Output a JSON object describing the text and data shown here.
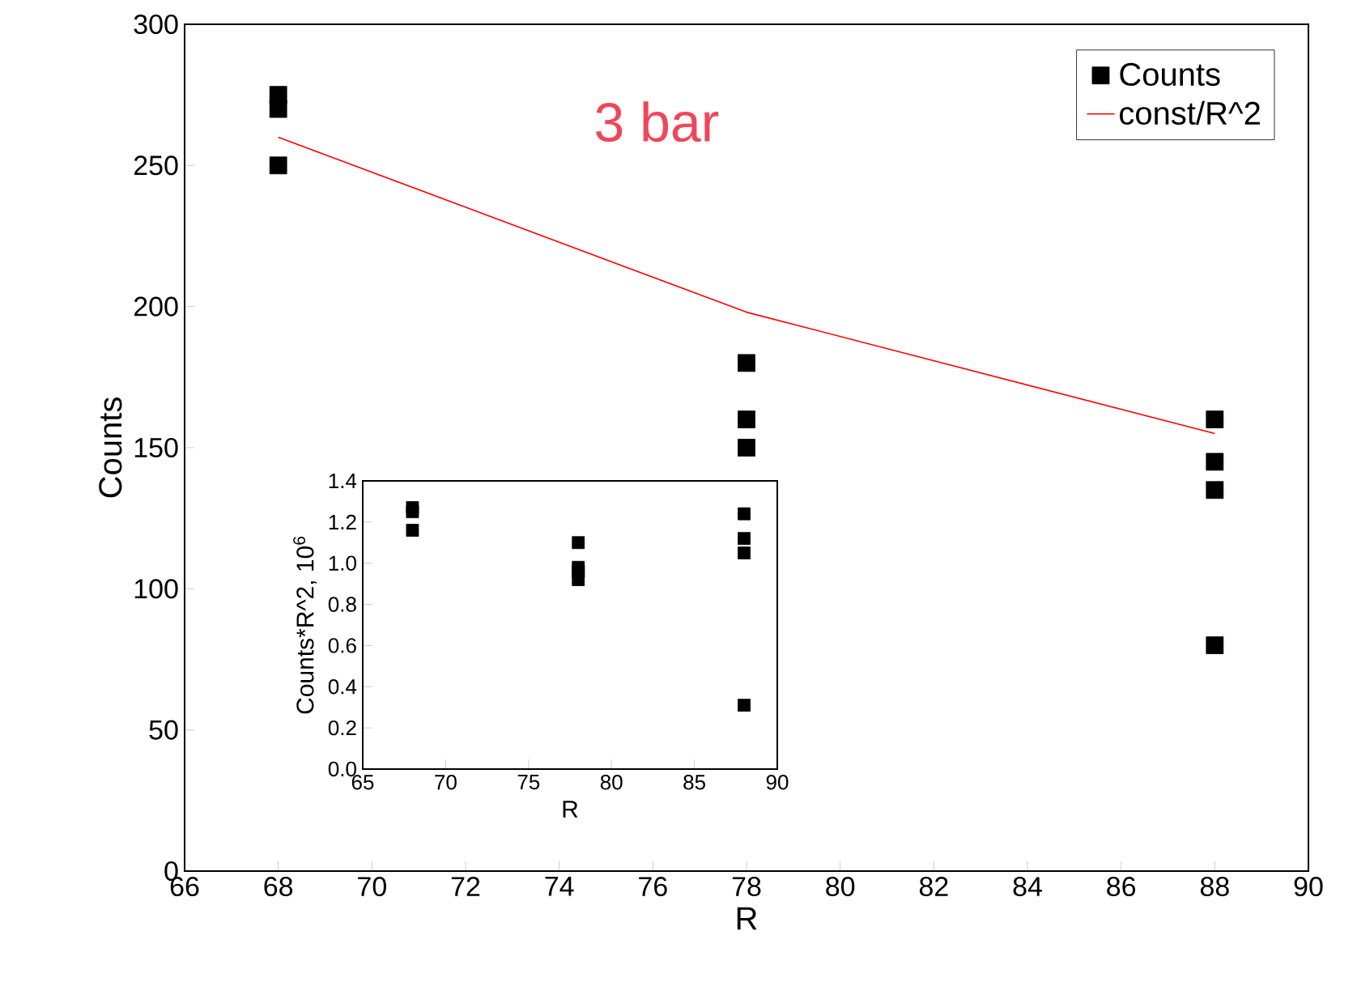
{
  "chart_data": [
    {
      "type": "scatter",
      "xlabel": "R",
      "ylabel": "Counts",
      "annotations": [
        "3 bar"
      ],
      "xlim": [
        66,
        90
      ],
      "ylim": [
        0,
        300
      ],
      "xticks": [
        66,
        68,
        70,
        72,
        74,
        76,
        78,
        80,
        82,
        84,
        86,
        88,
        90
      ],
      "yticks": [
        0,
        50,
        100,
        150,
        200,
        250,
        300
      ],
      "legend": "top right",
      "grid": false,
      "series": [
        {
          "name": "Counts",
          "type": "scatter",
          "color": "#000000",
          "marker": "square",
          "x": [
            68,
            68,
            68,
            78,
            78,
            78,
            88,
            88,
            88,
            88
          ],
          "values": [
            275,
            270,
            250,
            180,
            160,
            150,
            160,
            145,
            135,
            80
          ]
        },
        {
          "name": "const/R^2",
          "type": "line",
          "color": "#ff0000",
          "marker": "none",
          "line_style": "solid",
          "x": [
            68,
            78,
            88
          ],
          "values": [
            260,
            198,
            155
          ]
        }
      ]
    },
    {
      "type": "scatter",
      "xlabel": "R",
      "ylabel": "Counts*R^2, 10$^{6}$",
      "xlim": [
        65,
        90
      ],
      "ylim": [
        0,
        1.4
      ],
      "xticks": [
        65,
        70,
        75,
        80,
        85,
        90
      ],
      "yticks": [
        {
          "value": 0,
          "label": "0.0"
        },
        {
          "value": 0.2,
          "label": "0.2"
        },
        {
          "value": 0.4,
          "label": "0.4"
        },
        {
          "value": 0.6,
          "label": "0.6"
        },
        {
          "value": 0.8,
          "label": "0.8"
        },
        {
          "value": 1.0,
          "label": "1.0"
        },
        {
          "value": 1.2,
          "label": "1.2"
        },
        {
          "value": 1.4,
          "label": "1.4"
        }
      ],
      "legend": false,
      "grid": false,
      "marker": "square",
      "color": "#000000",
      "x": [
        68,
        68,
        68,
        78,
        78,
        78,
        78,
        88,
        88,
        88,
        88
      ],
      "values": [
        1.27,
        1.25,
        1.16,
        1.1,
        0.98,
        0.96,
        0.92,
        1.24,
        1.12,
        1.05,
        0.31
      ]
    }
  ]
}
